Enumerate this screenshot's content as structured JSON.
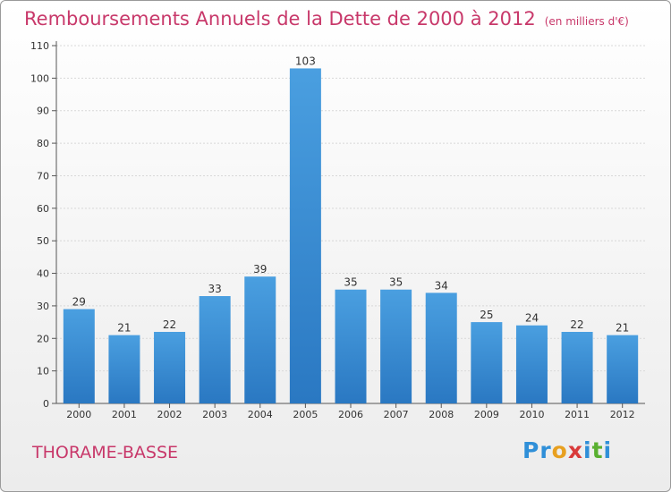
{
  "header": {
    "title": "Remboursements Annuels de la Dette de 2000 à 2012",
    "unit_note": "(en milliers d'€)"
  },
  "footer": {
    "commune": "THORAME-BASSE",
    "logo_letters": [
      "P",
      "r",
      "o",
      "x",
      "i",
      "t",
      "i"
    ],
    "logo_colors": [
      "#2f8fd8",
      "#2f8fd8",
      "#e8a020",
      "#d93a3a",
      "#2f8fd8",
      "#5ab030",
      "#2f8fd8"
    ]
  },
  "chart_data": {
    "type": "bar",
    "title": "Remboursements Annuels de la Dette de 2000 à 2012",
    "categories": [
      "2000",
      "2001",
      "2002",
      "2003",
      "2004",
      "2005",
      "2006",
      "2007",
      "2008",
      "2009",
      "2010",
      "2011",
      "2012"
    ],
    "values": [
      29,
      21,
      22,
      33,
      39,
      103,
      35,
      35,
      34,
      25,
      24,
      22,
      21
    ],
    "ylim": [
      0,
      110
    ],
    "yticks": [
      0,
      10,
      20,
      30,
      40,
      50,
      60,
      70,
      80,
      90,
      100,
      110
    ],
    "grid": true,
    "bar_color": "#4a9fe0",
    "bar_color_dark": "#2a78c2"
  }
}
